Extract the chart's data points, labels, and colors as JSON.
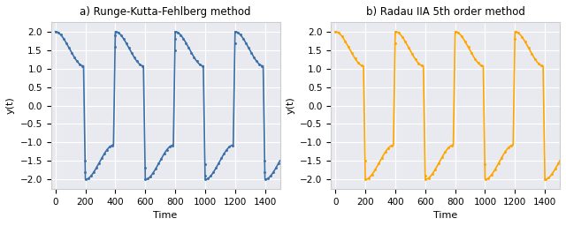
{
  "title_left": "a) Runge-Kutta-Fehlberg method",
  "title_right": "b) Radau IIA 5th order method",
  "xlabel": "Time",
  "ylabel": "y(t)",
  "xlim": [
    -30,
    1500
  ],
  "ylim": [
    -2.25,
    2.25
  ],
  "xticks": [
    0,
    200,
    400,
    600,
    800,
    1000,
    1200,
    1400
  ],
  "yticks": [
    -2.0,
    -1.5,
    -1.0,
    -0.5,
    0.0,
    0.5,
    1.0,
    1.5,
    2.0
  ],
  "color_left": "#3a6fa8",
  "color_right": "#ffa500",
  "background_color": "#e8eaf0",
  "grid_color": "#ffffff",
  "fig_width": 6.4,
  "fig_height": 2.56,
  "dpi": 100,
  "period": 400.0,
  "t_end": 1500.0
}
